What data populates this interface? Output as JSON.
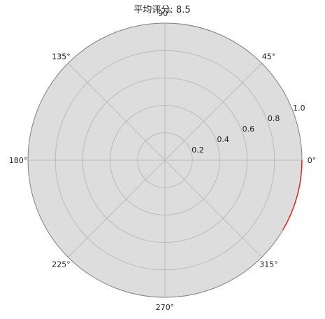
{
  "chart_data": {
    "type": "polar-arc",
    "title": "平均评分: 8.5",
    "angular_ticks": [
      {
        "angle": 0,
        "label": "0°"
      },
      {
        "angle": 45,
        "label": "45°"
      },
      {
        "angle": 90,
        "label": "90°"
      },
      {
        "angle": 135,
        "label": "135°"
      },
      {
        "angle": 180,
        "label": "180°"
      },
      {
        "angle": 225,
        "label": "225°"
      },
      {
        "angle": 270,
        "label": "270°"
      },
      {
        "angle": 315,
        "label": "315°"
      }
    ],
    "radial_ticks": [
      {
        "value": 0.2,
        "label": "0.2"
      },
      {
        "value": 0.4,
        "label": "0.4"
      },
      {
        "value": 0.6,
        "label": "0.6"
      },
      {
        "value": 0.8,
        "label": "0.8"
      },
      {
        "value": 1.0,
        "label": "1.0"
      }
    ],
    "rlim": [
      0,
      1.0
    ],
    "grid": true,
    "series": [
      {
        "r": 1.0,
        "theta_start_deg": 0,
        "theta_end_deg": -30.6,
        "color": "#e8231a"
      }
    ],
    "colors": {
      "background": "#dddddd",
      "grid": "#bbbbbb",
      "spine": "#808080",
      "arc": "#e8231a"
    }
  }
}
